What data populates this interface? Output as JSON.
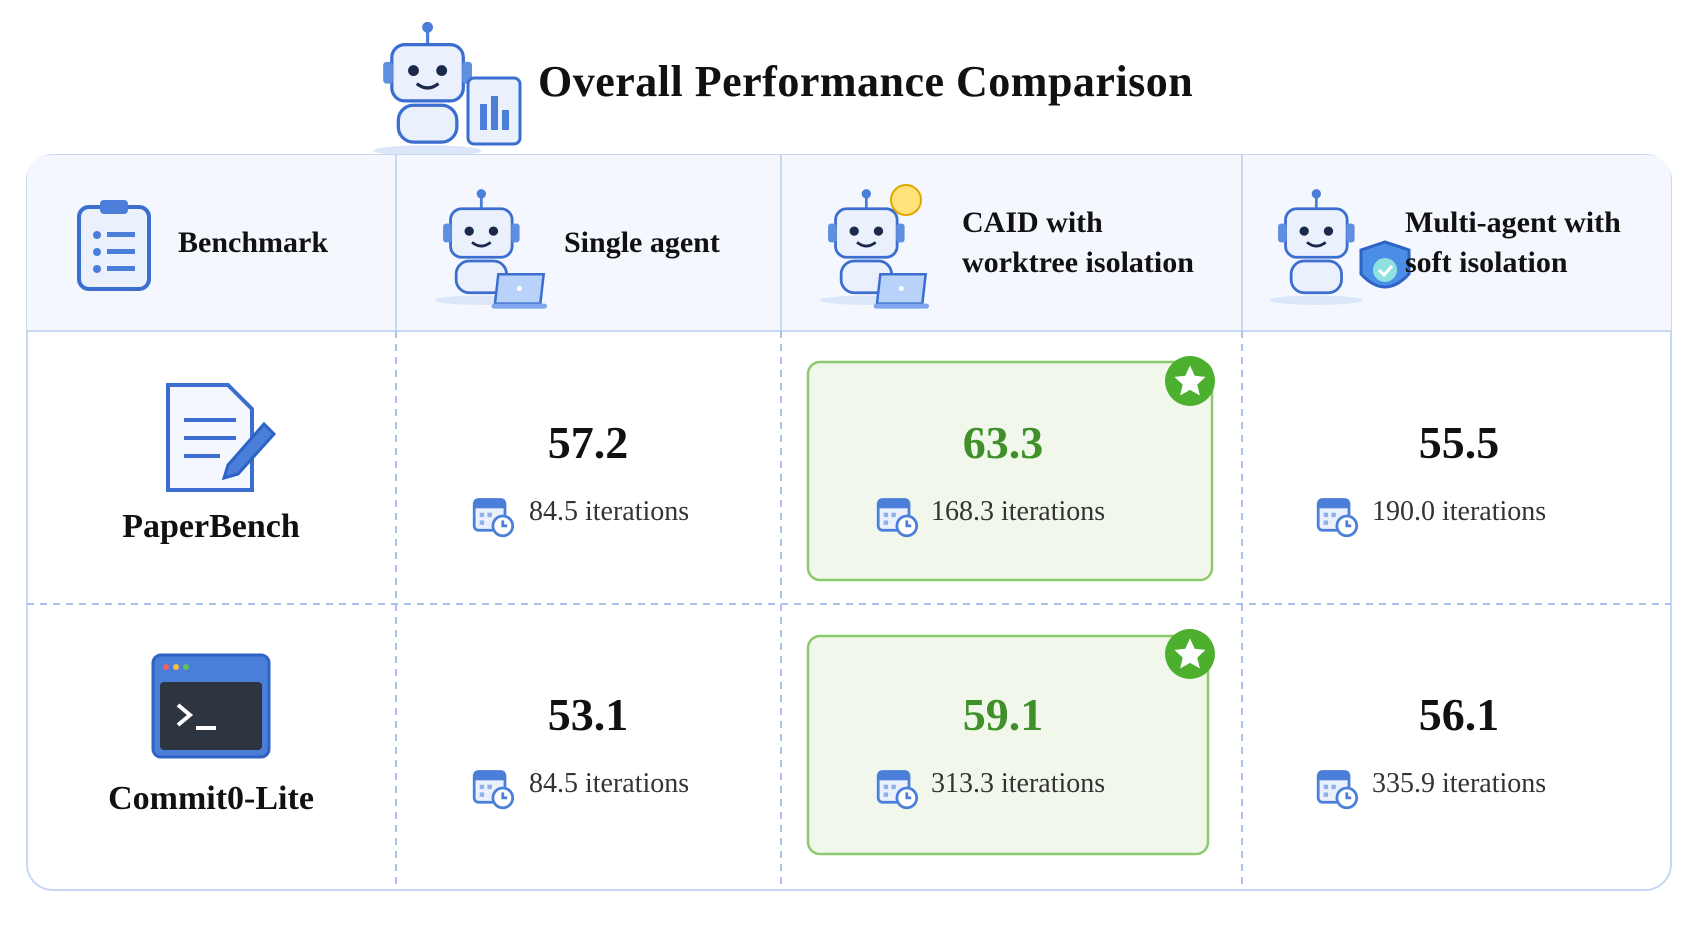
{
  "title": "Overall Performance Comparison",
  "table": {
    "header": [
      {
        "lines": [
          "Benchmark"
        ]
      },
      {
        "lines": [
          "Single agent"
        ]
      },
      {
        "lines": [
          "CAID with",
          "worktree isolation"
        ]
      },
      {
        "lines": [
          "Multi-agent with",
          "soft isolation"
        ]
      }
    ],
    "rows": [
      {
        "benchmark": "PaperBench",
        "cells": [
          {
            "score": "57.2",
            "iterations": "84.5 iterations"
          },
          {
            "score": "63.3",
            "iterations": "168.3 iterations",
            "best": true
          },
          {
            "score": "55.5",
            "iterations": "190.0 iterations"
          }
        ]
      },
      {
        "benchmark": "Commit0-Lite",
        "cells": [
          {
            "score": "53.1",
            "iterations": "84.5 iterations"
          },
          {
            "score": "59.1",
            "iterations": "313.3 iterations",
            "best": true
          },
          {
            "score": "56.1",
            "iterations": "335.9 iterations"
          }
        ]
      }
    ]
  }
}
